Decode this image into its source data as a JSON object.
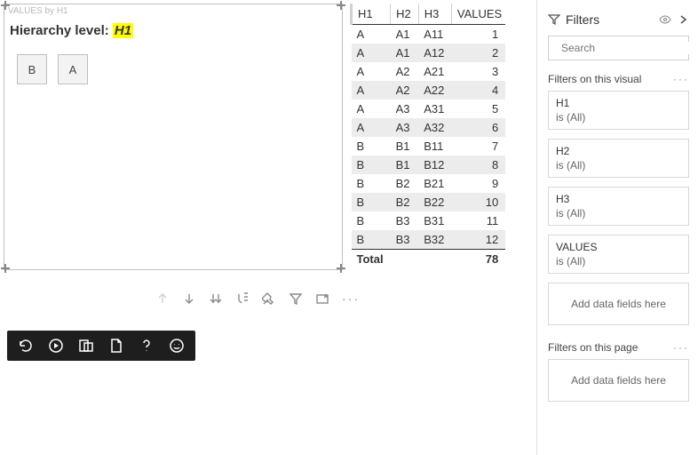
{
  "visual": {
    "card_title": "VALUES by H1",
    "hier_label": "Hierarchy level: ",
    "hier_value": "H1",
    "buttons": [
      "B",
      "A"
    ]
  },
  "table": {
    "headers": [
      "H1",
      "H2",
      "H3",
      "VALUES"
    ],
    "rows": [
      [
        "A",
        "A1",
        "A11",
        "1"
      ],
      [
        "A",
        "A1",
        "A12",
        "2"
      ],
      [
        "A",
        "A2",
        "A21",
        "3"
      ],
      [
        "A",
        "A2",
        "A22",
        "4"
      ],
      [
        "A",
        "A3",
        "A31",
        "5"
      ],
      [
        "A",
        "A3",
        "A32",
        "6"
      ],
      [
        "B",
        "B1",
        "B11",
        "7"
      ],
      [
        "B",
        "B1",
        "B12",
        "8"
      ],
      [
        "B",
        "B2",
        "B21",
        "9"
      ],
      [
        "B",
        "B2",
        "B22",
        "10"
      ],
      [
        "B",
        "B3",
        "B31",
        "11"
      ],
      [
        "B",
        "B3",
        "B32",
        "12"
      ]
    ],
    "footer": {
      "label": "Total",
      "value": "78"
    }
  },
  "filters": {
    "title": "Filters",
    "search_placeholder": "Search",
    "section_visual": "Filters on this visual",
    "section_page": "Filters on this page",
    "drop_text": "Add data fields here",
    "items": [
      {
        "name": "H1",
        "value": "is (All)"
      },
      {
        "name": "H2",
        "value": "is (All)"
      },
      {
        "name": "H3",
        "value": "is (All)"
      },
      {
        "name": "VALUES",
        "value": "is (All)"
      }
    ]
  }
}
